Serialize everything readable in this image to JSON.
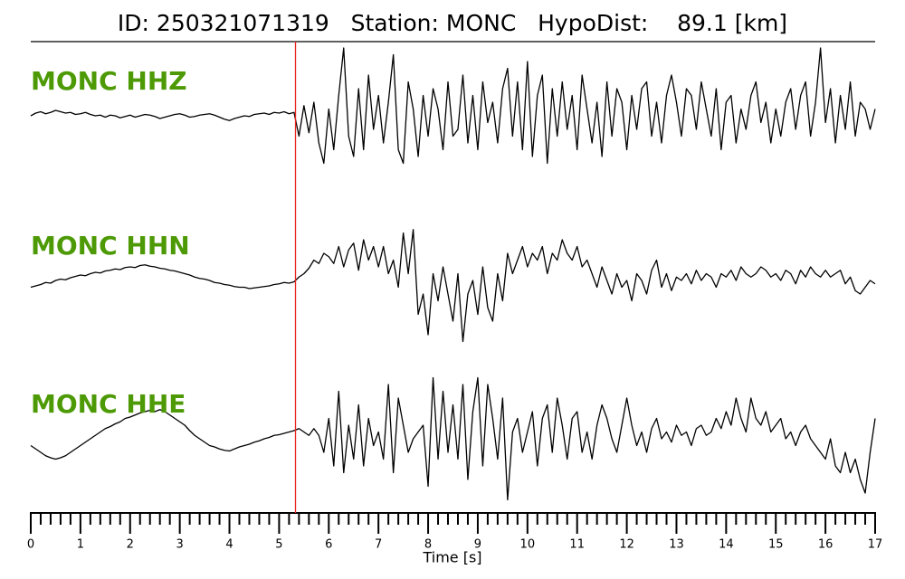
{
  "chart_data": {
    "type": "line",
    "title": "ID: 250321071319   Station: MONC   HypoDist:    89.1 [km]",
    "xlabel": "Time [s]",
    "xlim": [
      0,
      17
    ],
    "xticks": [
      0,
      1,
      2,
      3,
      4,
      5,
      6,
      7,
      8,
      9,
      10,
      11,
      12,
      13,
      14,
      15,
      16,
      17
    ],
    "xminorticks": [
      0.2,
      0.4,
      0.6,
      0.8,
      1.2,
      1.4,
      1.6,
      1.8,
      2.2,
      2.4,
      2.6,
      2.8,
      3.2,
      3.4,
      3.6,
      3.8,
      4.2,
      4.4,
      4.6,
      4.8,
      5.2,
      5.4,
      5.6,
      5.8,
      6.2,
      6.4,
      6.6,
      6.8,
      7.2,
      7.4,
      7.6,
      7.8,
      8.2,
      8.4,
      8.6,
      8.8,
      9.2,
      9.4,
      9.6,
      9.8,
      10.2,
      10.4,
      10.6,
      10.8,
      11.2,
      11.4,
      11.6,
      11.8,
      12.2,
      12.4,
      12.6,
      12.8,
      13.2,
      13.4,
      13.6,
      13.8,
      14.2,
      14.4,
      14.6,
      14.8,
      15.2,
      15.4,
      15.6,
      15.8,
      16.2,
      16.4,
      16.6,
      16.8
    ],
    "ylim": [
      -1,
      1
    ],
    "pick": {
      "x": 5.33,
      "color": "#e8231f"
    },
    "label_color": "#4d9a06",
    "x": [
      0,
      0.1,
      0.2,
      0.3,
      0.4,
      0.5,
      0.6,
      0.7,
      0.8,
      0.9,
      1,
      1.1,
      1.2,
      1.3,
      1.4,
      1.5,
      1.6,
      1.7,
      1.8,
      1.9,
      2,
      2.1,
      2.2,
      2.3,
      2.4,
      2.5,
      2.6,
      2.7,
      2.8,
      2.9,
      3,
      3.1,
      3.2,
      3.3,
      3.4,
      3.5,
      3.6,
      3.7,
      3.8,
      3.9,
      4,
      4.1,
      4.2,
      4.3,
      4.4,
      4.5,
      4.6,
      4.7,
      4.8,
      4.9,
      5,
      5.1,
      5.2,
      5.3,
      5.4,
      5.5,
      5.6,
      5.7,
      5.8,
      5.9,
      6,
      6.1,
      6.2,
      6.3,
      6.4,
      6.5,
      6.6,
      6.7,
      6.8,
      6.9,
      7,
      7.1,
      7.2,
      7.3,
      7.4,
      7.5,
      7.6,
      7.7,
      7.8,
      7.9,
      8,
      8.1,
      8.2,
      8.3,
      8.4,
      8.5,
      8.6,
      8.7,
      8.8,
      8.9,
      9,
      9.1,
      9.2,
      9.3,
      9.4,
      9.5,
      9.6,
      9.7,
      9.8,
      9.9,
      10,
      10.1,
      10.2,
      10.3,
      10.4,
      10.5,
      10.6,
      10.7,
      10.8,
      10.9,
      11,
      11.1,
      11.2,
      11.3,
      11.4,
      11.5,
      11.6,
      11.7,
      11.8,
      11.9,
      12,
      12.1,
      12.2,
      12.3,
      12.4,
      12.5,
      12.6,
      12.7,
      12.8,
      12.9,
      13,
      13.1,
      13.2,
      13.3,
      13.4,
      13.5,
      13.6,
      13.7,
      13.8,
      13.9,
      14,
      14.1,
      14.2,
      14.3,
      14.4,
      14.5,
      14.6,
      14.7,
      14.8,
      14.9,
      15,
      15.1,
      15.2,
      15.3,
      15.4,
      15.5,
      15.6,
      15.7,
      15.8,
      15.9,
      16,
      16.1,
      16.2,
      16.3,
      16.4,
      16.5,
      16.6,
      16.7,
      16.8,
      16.9,
      17
    ],
    "series": [
      {
        "name": "MONC HHZ",
        "color": "#000000",
        "values": [
          0,
          0.04,
          0.06,
          0.03,
          0.05,
          0.08,
          0.06,
          0.04,
          0.05,
          0.02,
          0.03,
          0.05,
          0.02,
          0,
          0.01,
          -0.02,
          0.01,
          0,
          -0.03,
          -0.01,
          0.01,
          -0.02,
          0,
          0.02,
          0.01,
          -0.01,
          -0.04,
          -0.02,
          0,
          0.02,
          0.03,
          0.01,
          -0.02,
          -0.01,
          0.01,
          0.02,
          0.03,
          0.01,
          -0.02,
          -0.05,
          -0.07,
          -0.04,
          -0.02,
          0,
          -0.01,
          0.02,
          0.03,
          0.04,
          0.02,
          0.05,
          0.04,
          0.06,
          0.03,
          0.05,
          -0.3,
          0.15,
          -0.25,
          0.2,
          -0.4,
          -0.7,
          0.1,
          -0.5,
          0.3,
          1.0,
          -0.3,
          -0.6,
          0.4,
          -0.5,
          0.6,
          -0.2,
          0.3,
          -0.4,
          0.2,
          0.9,
          -0.5,
          -0.7,
          0.5,
          0.1,
          -0.6,
          0.3,
          -0.3,
          0.4,
          0.1,
          -0.5,
          0.5,
          -0.3,
          -0.2,
          0.6,
          -0.4,
          0.3,
          -0.5,
          0.5,
          -0.1,
          0.2,
          -0.4,
          0.4,
          0.7,
          -0.3,
          0.5,
          -0.5,
          0.8,
          -0.6,
          0.3,
          0.6,
          -0.7,
          0.4,
          -0.3,
          0.5,
          -0.2,
          0.3,
          -0.5,
          0.6,
          0.1,
          -0.4,
          0.2,
          -0.6,
          0.5,
          -0.3,
          0.4,
          0.2,
          -0.5,
          0.3,
          -0.2,
          0.4,
          0.5,
          -0.3,
          0.2,
          -0.4,
          0.3,
          0.6,
          0.2,
          -0.3,
          0.4,
          0.3,
          -0.2,
          0.5,
          0.1,
          -0.3,
          0.4,
          -0.5,
          0.2,
          0.3,
          -0.4,
          0.1,
          -0.2,
          0.3,
          0.5,
          -0.1,
          0.2,
          -0.4,
          0.1,
          -0.3,
          0.2,
          0.4,
          -0.2,
          0.3,
          0.5,
          -0.3,
          0.2,
          1.0,
          -0.1,
          0.4,
          -0.4,
          0.3,
          -0.2,
          0.5,
          -0.3,
          0.2,
          0.1,
          -0.2,
          0.1
        ]
      },
      {
        "name": "MONC HHN",
        "color": "#000000",
        "values": [
          -0.1,
          -0.08,
          -0.06,
          -0.03,
          -0.04,
          0,
          0.02,
          0.01,
          0.04,
          0.06,
          0.08,
          0.07,
          0.1,
          0.12,
          0.11,
          0.14,
          0.15,
          0.17,
          0.16,
          0.19,
          0.2,
          0.19,
          0.22,
          0.23,
          0.21,
          0.2,
          0.18,
          0.17,
          0.15,
          0.14,
          0.12,
          0.1,
          0.08,
          0.05,
          0.03,
          0.02,
          0,
          -0.03,
          -0.04,
          -0.06,
          -0.07,
          -0.09,
          -0.1,
          -0.1,
          -0.12,
          -0.11,
          -0.1,
          -0.09,
          -0.08,
          -0.06,
          -0.05,
          -0.03,
          -0.04,
          -0.02,
          0.05,
          0.1,
          0.18,
          0.3,
          0.25,
          0.4,
          0.35,
          0.25,
          0.5,
          0.2,
          0.45,
          0.55,
          0.15,
          0.6,
          0.3,
          0.5,
          0.2,
          0.5,
          0.1,
          0.3,
          -0.1,
          0.7,
          0.1,
          0.75,
          -0.5,
          -0.2,
          -0.8,
          0.1,
          -0.3,
          0.2,
          -0.2,
          -0.6,
          0.1,
          -0.9,
          -0.2,
          0,
          -0.5,
          0.2,
          -0.4,
          -0.6,
          0.1,
          -0.3,
          0.4,
          0.1,
          0.3,
          0.5,
          0.2,
          0.4,
          0.3,
          0.5,
          0.1,
          0.4,
          0.3,
          0.6,
          0.4,
          0.3,
          0.5,
          0.2,
          0.3,
          0.1,
          -0.1,
          0.2,
          0,
          -0.2,
          0.1,
          -0.1,
          0,
          -0.3,
          0.1,
          0,
          -0.2,
          0.15,
          0.3,
          -0.1,
          0.1,
          -0.15,
          0.05,
          0,
          0.1,
          -0.05,
          0.15,
          0,
          0.1,
          0.05,
          -0.1,
          0.1,
          0.05,
          0.15,
          0,
          0.2,
          0.1,
          0.05,
          0.1,
          0.2,
          0.15,
          0.05,
          0.1,
          0,
          0.15,
          0.1,
          -0.05,
          0.15,
          0.05,
          0.2,
          0.1,
          0.05,
          0.15,
          0.05,
          0.1,
          0.15,
          -0.05,
          0.05,
          -0.15,
          -0.2,
          -0.1,
          0,
          -0.05
        ]
      },
      {
        "name": "MONC HHE",
        "color": "#000000",
        "values": [
          -0.1,
          -0.15,
          -0.2,
          -0.25,
          -0.28,
          -0.3,
          -0.28,
          -0.25,
          -0.2,
          -0.15,
          -0.1,
          -0.05,
          0,
          0.05,
          0.1,
          0.15,
          0.18,
          0.22,
          0.25,
          0.3,
          0.32,
          0.35,
          0.38,
          0.4,
          0.42,
          0.4,
          0.43,
          0.4,
          0.35,
          0.3,
          0.25,
          0.2,
          0.12,
          0.05,
          0,
          -0.05,
          -0.1,
          -0.12,
          -0.15,
          -0.17,
          -0.18,
          -0.15,
          -0.12,
          -0.1,
          -0.08,
          -0.05,
          -0.03,
          0,
          0.02,
          0.05,
          0.06,
          0.08,
          0.1,
          0.12,
          0.15,
          0.1,
          0.05,
          0.15,
          0.05,
          -0.2,
          0.3,
          -0.4,
          0.7,
          -0.5,
          0.2,
          -0.3,
          0.5,
          -0.4,
          0.3,
          -0.1,
          0.1,
          -0.3,
          0.8,
          -0.5,
          0.6,
          0.2,
          -0.2,
          0,
          0.1,
          0.2,
          -0.7,
          0.9,
          -0.3,
          0.7,
          -0.2,
          0.5,
          -0.3,
          0.8,
          -0.6,
          0.4,
          0.9,
          -0.4,
          0.8,
          0.3,
          -0.3,
          0.6,
          -0.9,
          0.1,
          0.3,
          -0.2,
          0.1,
          0.4,
          -0.4,
          0.3,
          0.5,
          -0.2,
          0.6,
          0.2,
          -0.3,
          0.3,
          0.4,
          -0.2,
          0.1,
          -0.3,
          0.2,
          0.5,
          0.3,
          0,
          -0.2,
          0.2,
          0.6,
          0.2,
          -0.1,
          0.1,
          -0.2,
          0.15,
          0.3,
          0,
          0.1,
          -0.05,
          0.2,
          0.05,
          0.1,
          -0.1,
          0.15,
          0.2,
          0.05,
          0.1,
          0.3,
          0.15,
          0.4,
          0.2,
          0.6,
          0.3,
          0.1,
          0.6,
          0.3,
          0.2,
          0.4,
          0.1,
          0.2,
          0.3,
          0,
          0.1,
          -0.1,
          0.1,
          0.2,
          0,
          -0.1,
          -0.2,
          -0.3,
          0,
          -0.4,
          -0.5,
          -0.2,
          -0.5,
          -0.3,
          -0.6,
          -0.8,
          -0.2,
          0.3
        ]
      }
    ]
  }
}
